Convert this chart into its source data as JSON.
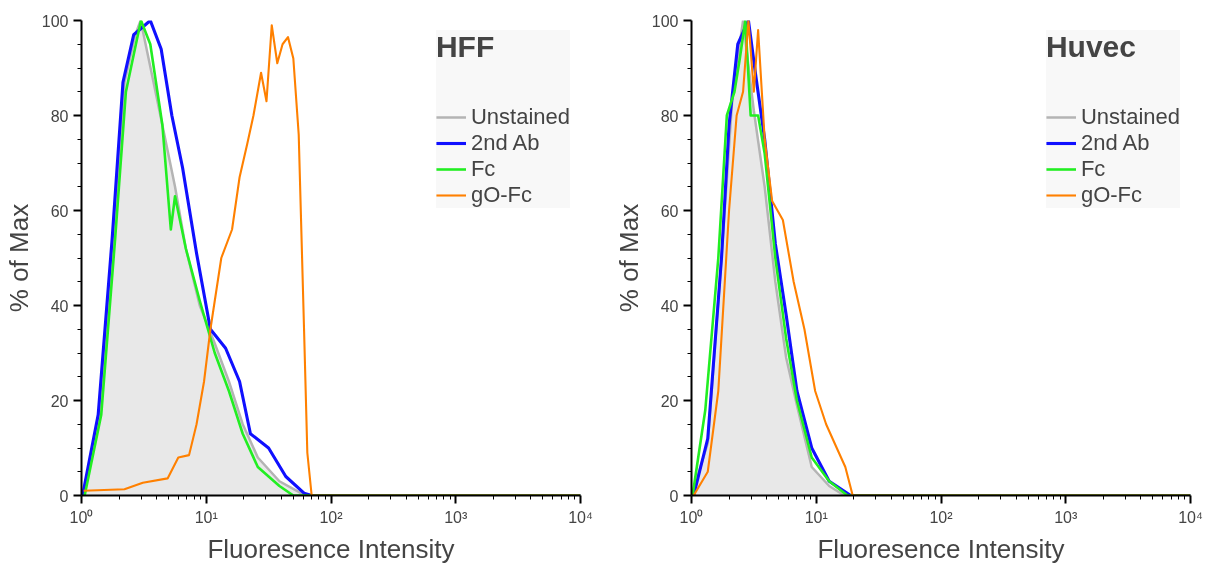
{
  "chart_data": [
    {
      "type": "line",
      "legend_title": "HFF",
      "xlabel": "Fluoresence Intensity",
      "ylabel": "% of Max",
      "log": "x",
      "xlim": [
        1,
        10000
      ],
      "ylim": [
        0,
        100
      ],
      "xticks": [
        {
          "value": 1,
          "label": "10⁰"
        },
        {
          "value": 10,
          "label": "10¹"
        },
        {
          "value": 100,
          "label": "10²"
        },
        {
          "value": 1000,
          "label": "10³"
        },
        {
          "value": 10000,
          "label": "10⁴"
        }
      ],
      "yticks": [
        0,
        20,
        40,
        60,
        80,
        100
      ],
      "grid": false,
      "legend": "top right",
      "series": [
        {
          "name": "Unstained",
          "type": "area",
          "color": "#b4b4b4",
          "x": [
            1.04,
            1.4,
            1.81,
            2.21,
            2.7,
            2.98,
            3.78,
            4.61,
            5.62,
            6.86,
            8.87,
            11.7,
            15.2,
            19.6,
            25.9,
            38.6,
            57.4,
            67.3,
            10000
          ],
          "values": [
            0,
            17,
            54,
            87,
            97,
            100,
            87,
            76,
            65,
            52,
            40,
            32,
            24,
            15,
            8,
            3,
            0.5,
            0,
            0
          ]
        },
        {
          "name": "2nd Ab",
          "color": "#1010ff",
          "x": [
            1.02,
            1.36,
            1.76,
            2.15,
            2.62,
            3.56,
            4.35,
            5.3,
            6.46,
            8.36,
            10.8,
            14.3,
            18.5,
            22.6,
            31.6,
            43.4,
            60.8,
            70,
            10000
          ],
          "values": [
            0,
            17,
            54,
            87,
            97,
            100,
            94,
            80,
            69,
            51,
            35,
            31,
            24,
            13,
            10,
            4,
            0.5,
            0,
            0
          ]
        },
        {
          "name": "Fc",
          "color": "#22ee22",
          "x": [
            1.06,
            1.44,
            1.86,
            2.27,
            2.78,
            3.0,
            3.56,
            4.45,
            5.2,
            5.62,
            6.86,
            8.87,
            11.7,
            15.2,
            19.6,
            25.9,
            38.6,
            49.9,
            10000
          ],
          "values": [
            0,
            17,
            54,
            85,
            96,
            100,
            95,
            78,
            56,
            63,
            52,
            41,
            30,
            22,
            13,
            6,
            2,
            0,
            0
          ]
        },
        {
          "name": "gO-Fc",
          "color": "#ff8000",
          "x": [
            1.04,
            2.21,
            3.1,
            4.9,
            5.97,
            7.28,
            8.36,
            9.6,
            10.8,
            13.2,
            16.1,
            18.5,
            21.3,
            23.9,
            27.5,
            30.4,
            33.5,
            37.1,
            40.9,
            45.2,
            49.9,
            55.1,
            60.8,
            64.6,
            70,
            10000
          ],
          "values": [
            1,
            1.3,
            2.7,
            3.6,
            8,
            8.5,
            15,
            24,
            35,
            50,
            56,
            67,
            74,
            80,
            89,
            83,
            99,
            91,
            95,
            96.5,
            92,
            76,
            35,
            9,
            0,
            0
          ]
        }
      ]
    },
    {
      "type": "line",
      "legend_title": "Huvec",
      "xlabel": "Fluoresence Intensity",
      "ylabel": "% of Max",
      "log": "x",
      "xlim": [
        1,
        10000
      ],
      "ylim": [
        0,
        100
      ],
      "xticks": [
        {
          "value": 1,
          "label": "10⁰"
        },
        {
          "value": 10,
          "label": "10¹"
        },
        {
          "value": 100,
          "label": "10²"
        },
        {
          "value": 1000,
          "label": "10³"
        },
        {
          "value": 10000,
          "label": "10⁴"
        }
      ],
      "yticks": [
        0,
        20,
        40,
        60,
        80,
        100
      ],
      "grid": false,
      "legend": "top right",
      "series": [
        {
          "name": "Unstained",
          "type": "area",
          "color": "#b4b4b4",
          "x": [
            1,
            1.35,
            1.74,
            2.13,
            2.59,
            3.16,
            3.86,
            4.7,
            5.74,
            7.0,
            9.2,
            12.7,
            16.8,
            10000
          ],
          "values": [
            0,
            11,
            50,
            84,
            100,
            81,
            65,
            45,
            29,
            19,
            6,
            2,
            0,
            0
          ]
        },
        {
          "name": "2nd Ab",
          "color": "#1010ff",
          "x": [
            1.04,
            1.35,
            1.74,
            2.0,
            2.35,
            2.86,
            3.29,
            3.86,
            4.7,
            5.74,
            7.0,
            9.2,
            12.7,
            18.9,
            10000
          ],
          "values": [
            0,
            12,
            50,
            78,
            95,
            100,
            88,
            75,
            53,
            38,
            22,
            10,
            3,
            0,
            0
          ]
        },
        {
          "name": "Fc",
          "color": "#22ee22",
          "x": [
            1.02,
            1.29,
            1.64,
            1.92,
            2.21,
            2.44,
            2.7,
            2.98,
            3.42,
            3.86,
            4.7,
            5.74,
            7.0,
            9.2,
            12.7,
            17.8,
            10000
          ],
          "values": [
            0,
            18,
            50,
            80,
            85,
            92,
            100,
            80,
            80,
            72,
            50,
            33,
            20,
            8,
            3,
            0,
            0
          ]
        },
        {
          "name": "gO-Fc",
          "color": "#ff8000",
          "x": [
            1.04,
            1.35,
            1.64,
            2.0,
            2.3,
            2.59,
            2.86,
            3.16,
            3.42,
            3.86,
            4.43,
            5.4,
            6.59,
            8.04,
            9.8,
            12.0,
            14.6,
            17.1,
            19.6,
            10000
          ],
          "values": [
            0,
            5,
            22,
            60,
            80,
            85,
            100,
            85,
            98,
            75,
            62,
            58,
            45,
            35,
            22,
            15,
            10,
            6,
            0,
            0
          ]
        }
      ]
    }
  ]
}
